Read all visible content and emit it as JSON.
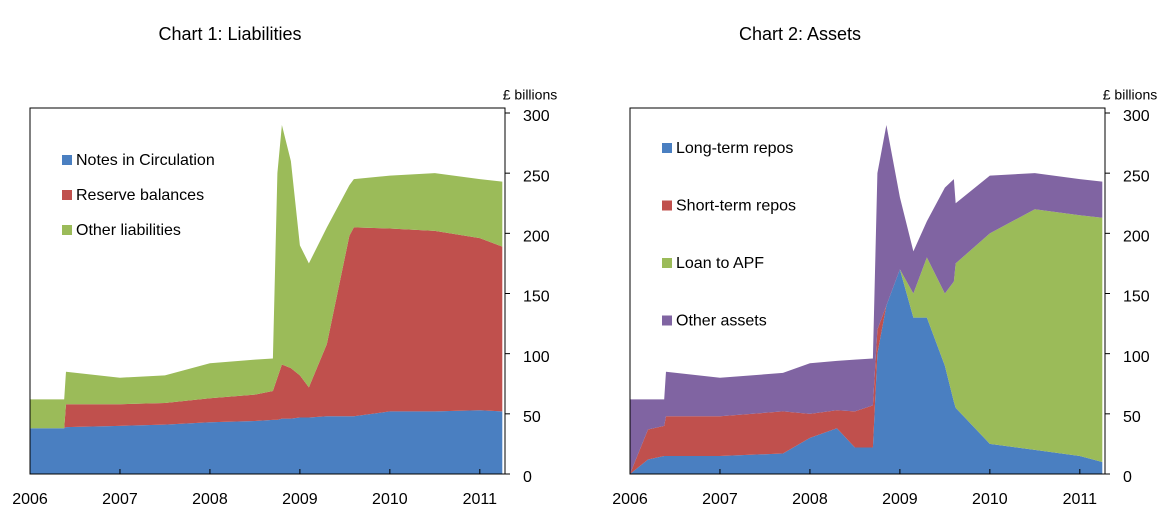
{
  "chart_data": [
    {
      "type": "stacked_area",
      "title": "Chart 1: Liabilities",
      "y_label": "£ billions",
      "x": [
        2006,
        2006.38,
        2006.4,
        2007,
        2007.5,
        2008,
        2008.5,
        2008.7,
        2008.75,
        2008.8,
        2008.9,
        2009.0,
        2009.1,
        2009.3,
        2009.55,
        2009.6,
        2010,
        2010.5,
        2011,
        2011.25
      ],
      "series": [
        {
          "name": "Notes in Circulation",
          "color": "#4a7fc1",
          "values": [
            38,
            38,
            39,
            40,
            41,
            43,
            44,
            45,
            45,
            46,
            46,
            47,
            47,
            48,
            48,
            48,
            52,
            52,
            53,
            52
          ]
        },
        {
          "name": "Reserve balances",
          "color": "#c0504d",
          "values": [
            0,
            0,
            19,
            18,
            18,
            20,
            22,
            24,
            35,
            45,
            42,
            35,
            25,
            60,
            150,
            157,
            152,
            150,
            143,
            137
          ]
        },
        {
          "name": "Other liabilities",
          "color": "#9bbb59",
          "values": [
            24,
            24,
            27,
            22,
            23,
            29,
            29,
            27,
            170,
            199,
            172,
            108,
            103,
            97,
            42,
            40,
            44,
            48,
            49,
            54
          ]
        }
      ],
      "xlim": [
        2006,
        2011.28
      ],
      "xticks": [
        2006,
        2007,
        2008,
        2009,
        2010,
        2011
      ],
      "ylim": [
        0,
        300
      ],
      "yticks": [
        0,
        50,
        100,
        150,
        200,
        250,
        300
      ],
      "legend": "upper left"
    },
    {
      "type": "stacked_area",
      "title": "Chart 2: Assets",
      "y_label": "£ billions",
      "x": [
        2006,
        2006.2,
        2006.38,
        2006.4,
        2007,
        2007.7,
        2008,
        2008.3,
        2008.5,
        2008.7,
        2008.75,
        2008.85,
        2009.0,
        2009.15,
        2009.3,
        2009.5,
        2009.6,
        2009.62,
        2010,
        2010.5,
        2011,
        2011.25
      ],
      "series": [
        {
          "name": "Long-term repos",
          "color": "#4a7fc1",
          "values": [
            0,
            12,
            15,
            15,
            15,
            17,
            30,
            38,
            22,
            22,
            100,
            140,
            170,
            130,
            130,
            90,
            60,
            55,
            25,
            20,
            15,
            10
          ]
        },
        {
          "name": "Short-term repos",
          "color": "#c0504d",
          "values": [
            0,
            25,
            25,
            33,
            33,
            35,
            20,
            15,
            30,
            35,
            20,
            0,
            0,
            0,
            0,
            0,
            0,
            0,
            0,
            0,
            0,
            0
          ]
        },
        {
          "name": "Loan to APF",
          "color": "#9bbb59",
          "values": [
            0,
            0,
            0,
            0,
            0,
            0,
            0,
            0,
            0,
            0,
            0,
            0,
            0,
            20,
            50,
            60,
            100,
            120,
            175,
            200,
            200,
            203
          ]
        },
        {
          "name": "Other assets",
          "color": "#8064a2",
          "values": [
            62,
            25,
            22,
            37,
            32,
            32,
            42,
            41,
            43,
            39,
            130,
            150,
            60,
            35,
            30,
            88,
            85,
            50,
            48,
            30,
            30,
            30
          ]
        }
      ],
      "xlim": [
        2006,
        2011.28
      ],
      "xticks": [
        2006,
        2007,
        2008,
        2009,
        2010,
        2011
      ],
      "ylim": [
        0,
        300
      ],
      "yticks": [
        0,
        50,
        100,
        150,
        200,
        250,
        300
      ],
      "legend": "upper left"
    }
  ]
}
